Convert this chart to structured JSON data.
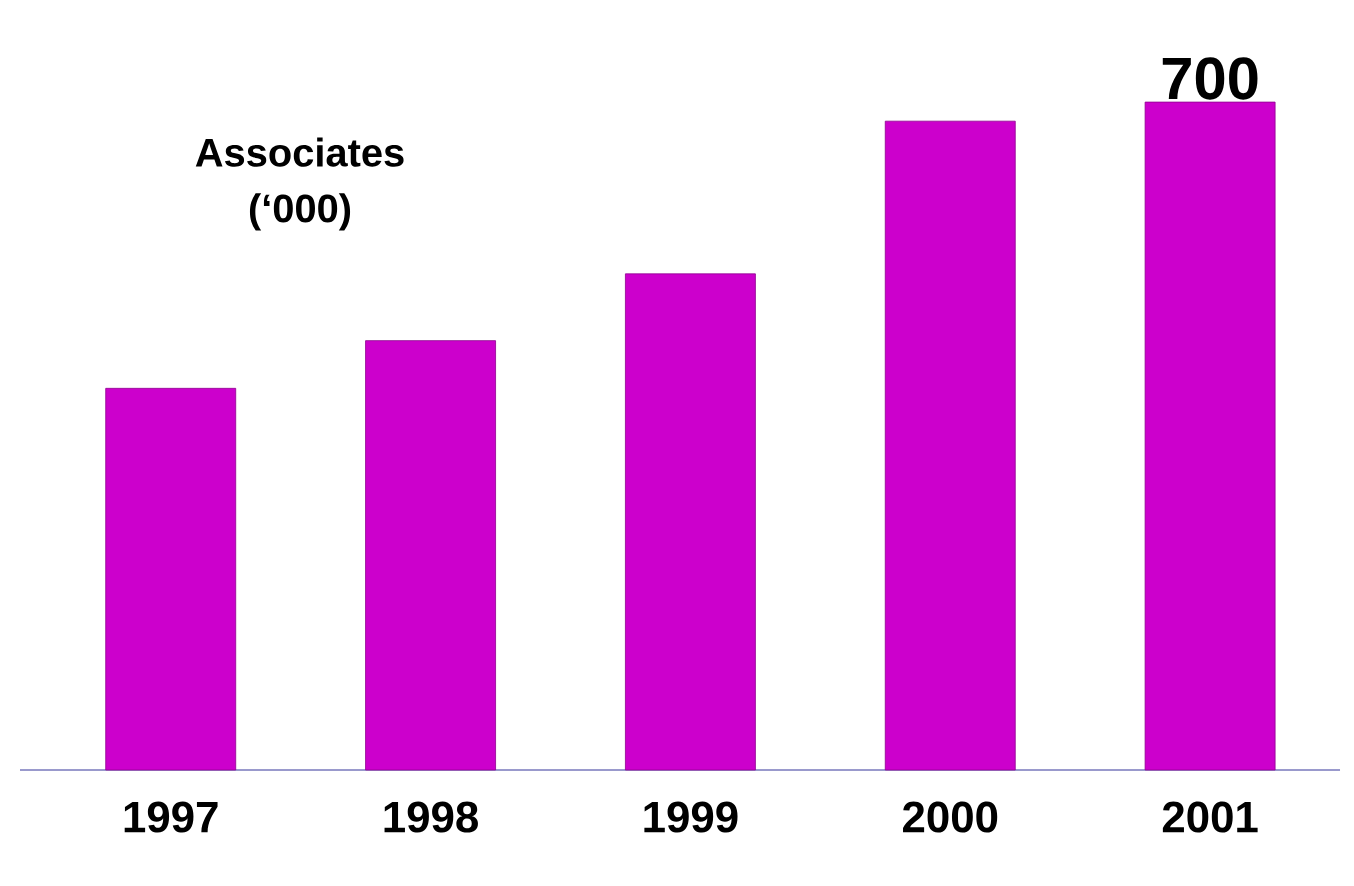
{
  "chart_data": {
    "type": "bar",
    "title": "Associates (‘000)",
    "categories": [
      "1997",
      "1998",
      "1999",
      "2000",
      "2001"
    ],
    "values": [
      400,
      450,
      520,
      680,
      700
    ],
    "value_labels": [
      null,
      null,
      null,
      null,
      "700"
    ],
    "color": "#cc00cc"
  }
}
